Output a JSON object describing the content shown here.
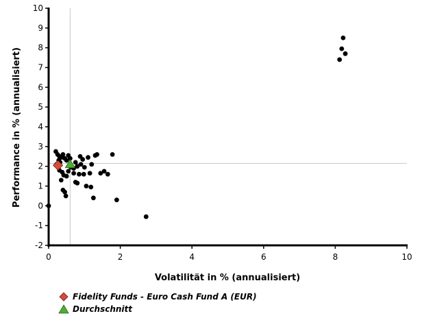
{
  "chart_data": {
    "type": "scatter",
    "title": "",
    "xlabel": "Volatilität in % (annualisiert)",
    "ylabel": "Performance in % (annualisiert)",
    "xlim": [
      0,
      10
    ],
    "ylim": [
      -2,
      10
    ],
    "x_ticks": [
      "0",
      "2",
      "4",
      "6",
      "8",
      "10"
    ],
    "y_ticks": [
      "-2",
      "-1",
      "0",
      "1",
      "2",
      "3",
      "4",
      "5",
      "6",
      "7",
      "8",
      "9",
      "10"
    ],
    "grid": false,
    "reference_lines": {
      "x": 0.6,
      "y": 2.15
    },
    "legend_placement": "bottom-left",
    "series": [
      {
        "role": "peers",
        "color": "#000000",
        "points": [
          [
            0.0,
            0.0
          ],
          [
            0.2,
            2.75
          ],
          [
            0.25,
            2.6
          ],
          [
            0.3,
            2.5
          ],
          [
            0.35,
            2.45
          ],
          [
            0.28,
            2.3
          ],
          [
            0.32,
            2.2
          ],
          [
            0.4,
            2.6
          ],
          [
            0.45,
            2.4
          ],
          [
            0.5,
            2.3
          ],
          [
            0.55,
            2.55
          ],
          [
            0.6,
            2.4
          ],
          [
            0.22,
            2.1
          ],
          [
            0.26,
            1.95
          ],
          [
            0.3,
            1.8
          ],
          [
            0.38,
            1.7
          ],
          [
            0.42,
            1.55
          ],
          [
            0.5,
            1.5
          ],
          [
            0.35,
            1.3
          ],
          [
            0.4,
            0.8
          ],
          [
            0.45,
            0.7
          ],
          [
            0.48,
            0.5
          ],
          [
            0.55,
            1.75
          ],
          [
            0.62,
            1.95
          ],
          [
            0.7,
            1.9
          ],
          [
            0.75,
            2.2
          ],
          [
            0.8,
            2.0
          ],
          [
            0.7,
            1.65
          ],
          [
            0.75,
            1.2
          ],
          [
            0.8,
            1.15
          ],
          [
            0.85,
            1.6
          ],
          [
            0.88,
            2.5
          ],
          [
            0.9,
            2.1
          ],
          [
            0.95,
            2.35
          ],
          [
            0.98,
            1.6
          ],
          [
            1.0,
            1.95
          ],
          [
            1.05,
            1.0
          ],
          [
            1.1,
            2.45
          ],
          [
            1.15,
            1.65
          ],
          [
            1.2,
            2.1
          ],
          [
            1.18,
            0.95
          ],
          [
            1.25,
            0.4
          ],
          [
            1.3,
            2.55
          ],
          [
            1.35,
            2.6
          ],
          [
            1.45,
            1.65
          ],
          [
            1.55,
            1.75
          ],
          [
            1.65,
            1.6
          ],
          [
            1.78,
            2.6
          ],
          [
            1.9,
            0.3
          ],
          [
            2.72,
            -0.55
          ],
          [
            8.12,
            7.4
          ],
          [
            8.18,
            7.95
          ],
          [
            8.22,
            8.5
          ],
          [
            8.28,
            7.7
          ]
        ]
      },
      {
        "name": "Fidelity Funds - Euro Cash Fund A (EUR)",
        "role": "fund",
        "marker": "diamond",
        "color": "#d64b3c",
        "points": [
          [
            0.26,
            2.05
          ]
        ]
      },
      {
        "name": "Durchschnitt",
        "role": "average",
        "marker": "triangle",
        "color": "#4caf32",
        "points": [
          [
            0.6,
            2.1
          ]
        ]
      }
    ]
  }
}
